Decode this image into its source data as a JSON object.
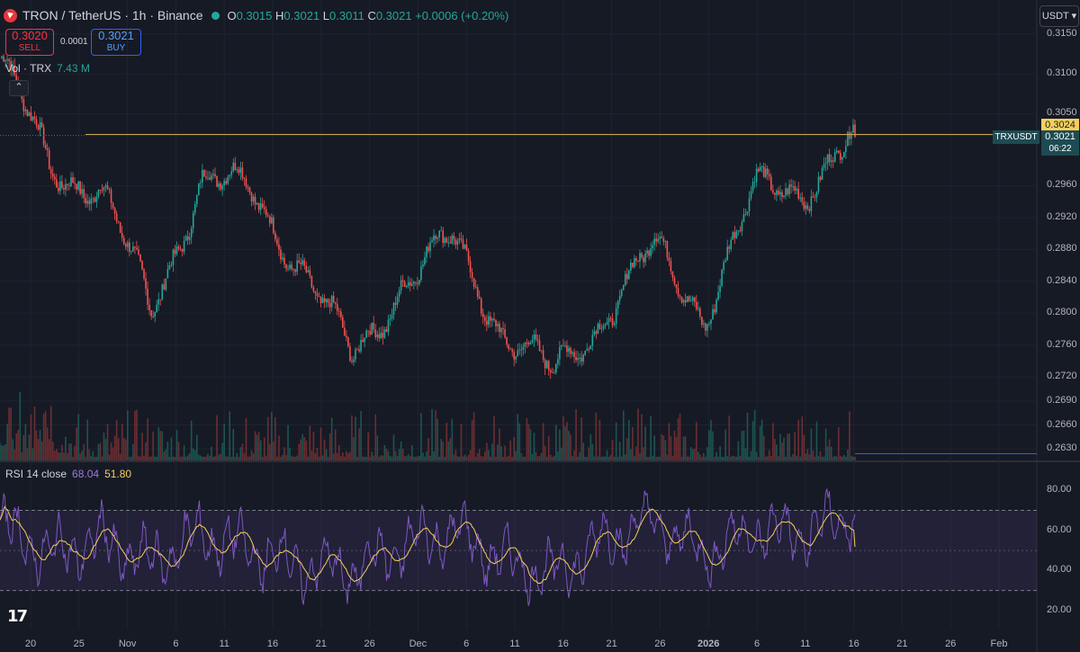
{
  "header": {
    "title": "TRON / TetherUS · 1h · Binance",
    "o_label": "O",
    "o": "0.3015",
    "h_label": "H",
    "h": "0.3021",
    "l_label": "L",
    "l": "0.3011",
    "c_label": "C",
    "c": "0.3021",
    "change": "+0.0006 (+0.20%)"
  },
  "trade": {
    "sell_price": "0.3020",
    "sell_label": "SELL",
    "spread": "0.0001",
    "buy_price": "0.3021",
    "buy_label": "BUY"
  },
  "volume": {
    "label": "Vol · TRX",
    "value": "7.43 M"
  },
  "currency_button": "USDT ▾",
  "rsi": {
    "label": "RSI 14 close",
    "value1": "68.04",
    "value2": "51.80"
  },
  "price_axis": {
    "current_price": "0.3024",
    "last_price": "0.3021",
    "countdown": "06:22",
    "symbol_tag": "TRXUSDT",
    "ticks": [
      "0.3150",
      "0.3100",
      "0.3050",
      "0.2960",
      "0.2920",
      "0.2880",
      "0.2840",
      "0.2800",
      "0.2760",
      "0.2720",
      "0.2690",
      "0.2660",
      "0.2630"
    ]
  },
  "rsi_axis": {
    "ticks": [
      "80.00",
      "60.00",
      "40.00",
      "20.00"
    ]
  },
  "time_axis": {
    "ticks": [
      "20",
      "25",
      "Nov",
      "6",
      "11",
      "16",
      "21",
      "26",
      "Dec",
      "6",
      "11",
      "16",
      "21",
      "26",
      "2026",
      "6",
      "11",
      "16",
      "21",
      "26",
      "Feb"
    ]
  },
  "colors": {
    "up": "#26a69a",
    "down": "#ef5350",
    "rsi": "#7e57c2",
    "rsi_ma": "#f5d05a",
    "price_line": "#c8a84a"
  },
  "icons": {
    "logo": "tron-logo-icon",
    "status": "market-open-dot-icon",
    "collapse": "chevron-up-icon",
    "brand": "tradingview-logo-icon"
  },
  "chart_data": {
    "type": "candlestick",
    "title": "TRON / TetherUS · 1h · Binance",
    "x": [
      "20",
      "25",
      "Nov",
      "6",
      "11",
      "16",
      "21",
      "26",
      "Dec",
      "6",
      "11",
      "16",
      "21",
      "26",
      "2026",
      "6",
      "11",
      "16"
    ],
    "close": [
      0.312,
      0.298,
      0.296,
      0.28,
      0.297,
      0.295,
      0.286,
      0.274,
      0.284,
      0.289,
      0.278,
      0.272,
      0.28,
      0.288,
      0.28,
      0.295,
      0.296,
      0.3021
    ],
    "ylim": [
      0.262,
      0.317
    ],
    "resistance": 0.3024,
    "rsi": {
      "length": 14,
      "values": [
        62,
        48,
        55,
        44,
        58,
        50,
        42,
        40,
        52,
        60,
        45,
        38,
        55,
        65,
        48,
        60,
        58,
        68.04
      ],
      "ma_last": 51.8,
      "levels": [
        70,
        30
      ],
      "ylim": [
        15,
        90
      ]
    }
  }
}
